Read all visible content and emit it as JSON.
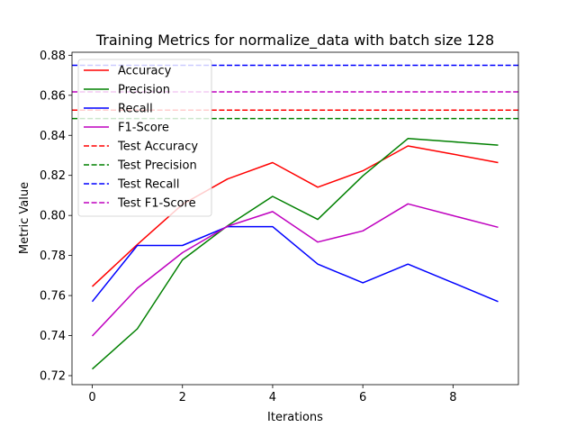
{
  "chart_data": {
    "type": "line",
    "title": "Training Metrics for normalize_data with batch size 128",
    "xlabel": "Iterations",
    "ylabel": "Metric Value",
    "xlim": [
      -0.45,
      9.45
    ],
    "ylim": [
      0.7155,
      0.8815
    ],
    "xticks": [
      0,
      2,
      4,
      6,
      8
    ],
    "yticks": [
      0.72,
      0.74,
      0.76,
      0.78,
      0.8,
      0.82,
      0.84,
      0.86,
      0.88
    ],
    "x": [
      0,
      1,
      2,
      3,
      4,
      5,
      6,
      7,
      8,
      9
    ],
    "legend_position": "upper-left",
    "series": [
      {
        "name": "Accuracy",
        "color": "#ff0000",
        "style": "solid",
        "values": [
          0.7645,
          0.7855,
          0.8055,
          0.8182,
          0.8264,
          0.8141,
          0.8223,
          0.8347,
          0.8306,
          0.8264
        ]
      },
      {
        "name": "Precision",
        "color": "#008000",
        "style": "solid",
        "values": [
          0.7233,
          0.7434,
          0.7778,
          0.7948,
          0.8095,
          0.798,
          0.8198,
          0.8384,
          0.8368,
          0.8351
        ]
      },
      {
        "name": "Recall",
        "color": "#0000ff",
        "style": "solid",
        "values": [
          0.757,
          0.785,
          0.785,
          0.7944,
          0.7944,
          0.7757,
          0.7664,
          0.7757,
          0.7664,
          0.757
        ]
      },
      {
        "name": "F1-Score",
        "color": "#bf00bf",
        "style": "solid",
        "values": [
          0.7398,
          0.7637,
          0.7814,
          0.7946,
          0.8019,
          0.7867,
          0.7923,
          0.8058,
          0.7999,
          0.7941
        ]
      },
      {
        "name": "Test Accuracy",
        "color": "#ff0000",
        "style": "dashed",
        "hline": 0.8526
      },
      {
        "name": "Test Precision",
        "color": "#008000",
        "style": "dashed",
        "hline": 0.8484
      },
      {
        "name": "Test Recall",
        "color": "#0000ff",
        "style": "dashed",
        "hline": 0.875
      },
      {
        "name": "Test F1-Score",
        "color": "#bf00bf",
        "style": "dashed",
        "hline": 0.8617
      }
    ]
  }
}
